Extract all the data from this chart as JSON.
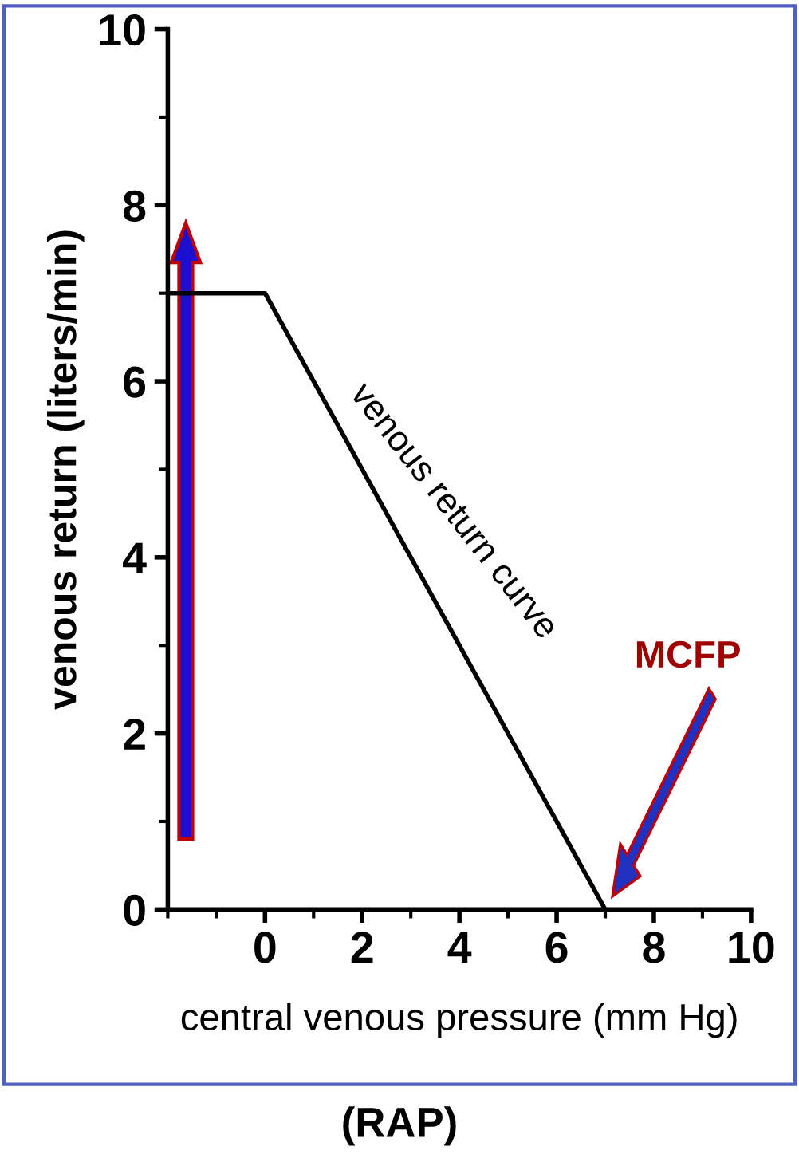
{
  "chart_data": {
    "type": "line",
    "xlabel": "central venous pressure (mm Hg)",
    "ylabel": "venous return (liters/min)",
    "x": [
      -2,
      0,
      7
    ],
    "series": [
      {
        "color": "#000000",
        "values": [
          7,
          7,
          0
        ]
      }
    ],
    "xlim": [
      -2,
      10
    ],
    "ylim": [
      0,
      10
    ],
    "xticks": [
      0,
      2,
      4,
      6,
      8,
      10
    ],
    "yticks": [
      0,
      2,
      4,
      6,
      8,
      10
    ],
    "grid": false,
    "legend": false,
    "marker": "none",
    "line_style": "solid",
    "annotations": [
      "MCFP",
      "venous return curve",
      "(RAP)"
    ]
  }
}
